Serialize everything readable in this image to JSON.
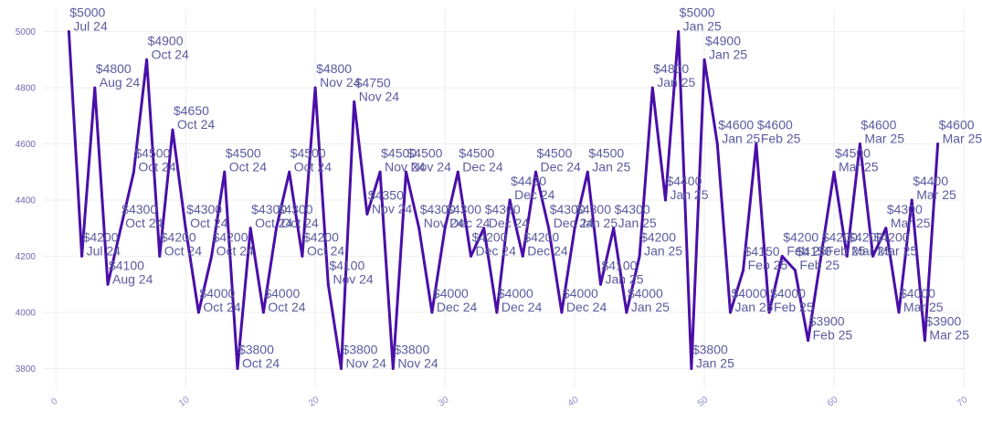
{
  "chart_data": {
    "type": "line",
    "title": "",
    "xlabel": "",
    "ylabel": "",
    "xlim": [
      -1,
      70
    ],
    "ylim": [
      3730,
      5080
    ],
    "x_ticks": [
      "0",
      "10",
      "20",
      "30",
      "40",
      "50",
      "60",
      "70"
    ],
    "x_tick_values": [
      0,
      10,
      20,
      30,
      40,
      50,
      60,
      70
    ],
    "y_ticks": [
      "3800",
      "4000",
      "4200",
      "4400",
      "4600",
      "4800",
      "5000"
    ],
    "y_tick_values": [
      3800,
      4000,
      4200,
      4400,
      4600,
      4800,
      5000
    ],
    "grid": true,
    "line_color": "#4a0fa8",
    "points": [
      {
        "x": 1,
        "y": 5000,
        "price": "$5000",
        "month": "Jul 24"
      },
      {
        "x": 2,
        "y": 4200,
        "price": "$4200",
        "month": "Jul 24"
      },
      {
        "x": 3,
        "y": 4800,
        "price": "$4800",
        "month": "Aug 24"
      },
      {
        "x": 4,
        "y": 4100,
        "price": "$4100",
        "month": "Aug 24"
      },
      {
        "x": 5,
        "y": 4300,
        "price": "$4300",
        "month": "Oct 24"
      },
      {
        "x": 6,
        "y": 4500,
        "price": "$4500",
        "month": "Oct 24"
      },
      {
        "x": 7,
        "y": 4900,
        "price": "$4900",
        "month": "Oct 24"
      },
      {
        "x": 8,
        "y": 4200,
        "price": "$4200",
        "month": "Oct 24"
      },
      {
        "x": 9,
        "y": 4650,
        "price": "$4650",
        "month": "Oct 24"
      },
      {
        "x": 10,
        "y": 4300,
        "price": "$4300",
        "month": "Oct 24"
      },
      {
        "x": 11,
        "y": 4000,
        "price": "$4000",
        "month": "Oct 24"
      },
      {
        "x": 12,
        "y": 4200,
        "price": "$4200",
        "month": "Oct 24"
      },
      {
        "x": 13,
        "y": 4500,
        "price": "$4500",
        "month": "Oct 24"
      },
      {
        "x": 14,
        "y": 3800,
        "price": "$3800",
        "month": "Oct 24"
      },
      {
        "x": 15,
        "y": 4300,
        "price": "$4300",
        "month": "Oct 24"
      },
      {
        "x": 16,
        "y": 4000,
        "price": "$4000",
        "month": "Oct 24"
      },
      {
        "x": 17,
        "y": 4300,
        "price": "$4300",
        "month": "Oct 24"
      },
      {
        "x": 18,
        "y": 4500,
        "price": "$4500",
        "month": "Oct 24"
      },
      {
        "x": 19,
        "y": 4200,
        "price": "$4200",
        "month": "Oct 24"
      },
      {
        "x": 20,
        "y": 4800,
        "price": "$4800",
        "month": "Nov 24"
      },
      {
        "x": 21,
        "y": 4100,
        "price": "$4100",
        "month": "Nov 24"
      },
      {
        "x": 22,
        "y": 3800,
        "price": "$3800",
        "month": "Nov 24"
      },
      {
        "x": 23,
        "y": 4750,
        "price": "$4750",
        "month": "Nov 24"
      },
      {
        "x": 24,
        "y": 4350,
        "price": "$4350",
        "month": "Nov 24"
      },
      {
        "x": 25,
        "y": 4500,
        "price": "$4500",
        "month": "Nov 24"
      },
      {
        "x": 26,
        "y": 3800,
        "price": "$3800",
        "month": "Nov 24"
      },
      {
        "x": 27,
        "y": 4500,
        "price": "$4500",
        "month": "Nov 24"
      },
      {
        "x": 28,
        "y": 4300,
        "price": "$4300",
        "month": "Nov 24"
      },
      {
        "x": 29,
        "y": 4000,
        "price": "$4000",
        "month": "Dec 24"
      },
      {
        "x": 30,
        "y": 4300,
        "price": "$4300",
        "month": "Dec 24"
      },
      {
        "x": 31,
        "y": 4500,
        "price": "$4500",
        "month": "Dec 24"
      },
      {
        "x": 32,
        "y": 4200,
        "price": "$4200",
        "month": "Dec 24"
      },
      {
        "x": 33,
        "y": 4300,
        "price": "$4300",
        "month": "Dec 24"
      },
      {
        "x": 34,
        "y": 4000,
        "price": "$4000",
        "month": "Dec 24"
      },
      {
        "x": 35,
        "y": 4400,
        "price": "$4400",
        "month": "Dec 24"
      },
      {
        "x": 36,
        "y": 4200,
        "price": "$4200",
        "month": "Dec 24"
      },
      {
        "x": 37,
        "y": 4500,
        "price": "$4500",
        "month": "Dec 24"
      },
      {
        "x": 38,
        "y": 4300,
        "price": "$4300",
        "month": "Dec 24"
      },
      {
        "x": 39,
        "y": 4000,
        "price": "$4000",
        "month": "Dec 24"
      },
      {
        "x": 40,
        "y": 4300,
        "price": "$4300",
        "month": "Jan 25"
      },
      {
        "x": 41,
        "y": 4500,
        "price": "$4500",
        "month": "Jan 25"
      },
      {
        "x": 42,
        "y": 4100,
        "price": "$4100",
        "month": "Jan 25"
      },
      {
        "x": 43,
        "y": 4300,
        "price": "$4300",
        "month": "Jan 25"
      },
      {
        "x": 44,
        "y": 4000,
        "price": "$4000",
        "month": "Jan 25"
      },
      {
        "x": 45,
        "y": 4200,
        "price": "$4200",
        "month": "Jan 25"
      },
      {
        "x": 46,
        "y": 4800,
        "price": "$4800",
        "month": "Jan 25"
      },
      {
        "x": 47,
        "y": 4400,
        "price": "$4400",
        "month": "Jan 25"
      },
      {
        "x": 48,
        "y": 5000,
        "price": "$5000",
        "month": "Jan 25"
      },
      {
        "x": 49,
        "y": 3800,
        "price": "$3800",
        "month": "Jan 25"
      },
      {
        "x": 50,
        "y": 4900,
        "price": "$4900",
        "month": "Jan 25"
      },
      {
        "x": 51,
        "y": 4600,
        "price": "$4600",
        "month": "Jan 25"
      },
      {
        "x": 52,
        "y": 4000,
        "price": "$4000",
        "month": "Jan 25"
      },
      {
        "x": 53,
        "y": 4150,
        "price": "$4150",
        "month": "Feb 25"
      },
      {
        "x": 54,
        "y": 4600,
        "price": "$4600",
        "month": "Feb 25"
      },
      {
        "x": 55,
        "y": 4000,
        "price": "$4000",
        "month": "Feb 25"
      },
      {
        "x": 56,
        "y": 4200,
        "price": "$4200",
        "month": "Feb 25"
      },
      {
        "x": 57,
        "y": 4150,
        "price": "$4150",
        "month": "Feb 25"
      },
      {
        "x": 58,
        "y": 3900,
        "price": "$3900",
        "month": "Feb 25"
      },
      {
        "x": 59,
        "y": 4200,
        "price": "$4200",
        "month": "Feb 25"
      },
      {
        "x": 60,
        "y": 4500,
        "price": "$4500",
        "month": "Mar 25"
      },
      {
        "x": 61,
        "y": 4200,
        "price": "$4200",
        "month": "Mar 25"
      },
      {
        "x": 62,
        "y": 4600,
        "price": "$4600",
        "month": "Mar 25"
      },
      {
        "x": 63,
        "y": 4200,
        "price": "$4200",
        "month": "Mar 25"
      },
      {
        "x": 64,
        "y": 4300,
        "price": "$4300",
        "month": "Mar 25"
      },
      {
        "x": 65,
        "y": 4000,
        "price": "$4000",
        "month": "Mar 25"
      },
      {
        "x": 66,
        "y": 4400,
        "price": "$4400",
        "month": "Mar 25"
      },
      {
        "x": 67,
        "y": 3900,
        "price": "$3900",
        "month": "Mar 25"
      },
      {
        "x": 68,
        "y": 4600,
        "price": "$4600",
        "month": "Mar 25"
      }
    ]
  }
}
